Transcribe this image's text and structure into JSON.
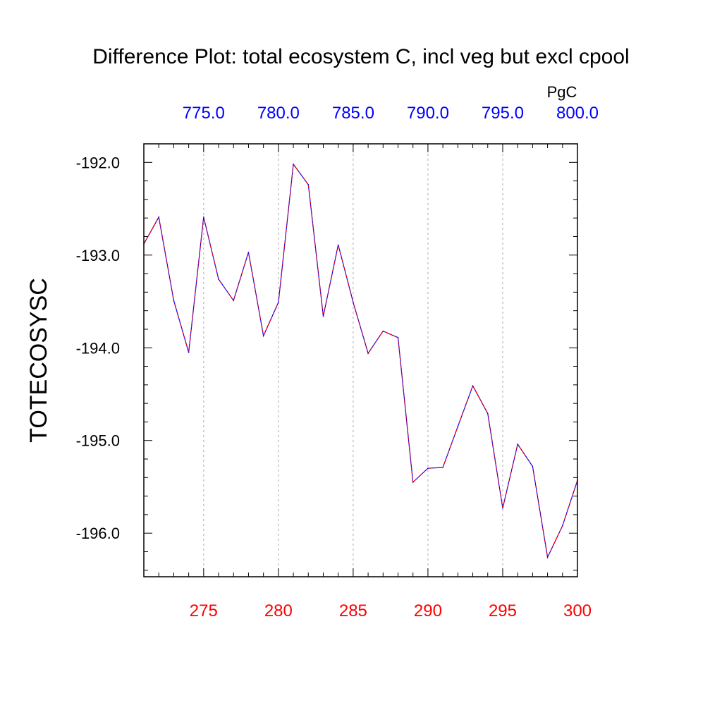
{
  "chart_data": {
    "type": "line",
    "title": "Difference Plot: total ecosystem C, incl veg but excl cpool",
    "ylabel": "TOTECOSYSC",
    "top_axis_unit": "PgC",
    "xlim": [
      271,
      300
    ],
    "ylim": [
      -196.47,
      -191.8
    ],
    "bottom_ticks": [
      275,
      280,
      285,
      290,
      295,
      300
    ],
    "bottom_tick_labels": [
      "275",
      "280",
      "285",
      "290",
      "295",
      "300"
    ],
    "top_ticks": [
      775,
      780,
      785,
      790,
      795,
      800
    ],
    "top_tick_labels": [
      "775.0",
      "780.0",
      "785.0",
      "790.0",
      "795.0",
      "800.0"
    ],
    "top_offset": 500,
    "left_ticks": [
      -192.0,
      -193.0,
      -194.0,
      -195.0,
      -196.0
    ],
    "left_tick_labels": [
      "-192.0",
      "-193.0",
      "-194.0",
      "-195.0",
      "-196.0"
    ],
    "left_minor_step": 0.2,
    "grid_x": true,
    "series": [
      {
        "name": "difference",
        "color_primary": "#0000ff",
        "color_dash": "#ff0000",
        "x": [
          271,
          272,
          273,
          274,
          275,
          276,
          277,
          278,
          279,
          280,
          281,
          282,
          283,
          284,
          285,
          286,
          287,
          288,
          289,
          290,
          291,
          292,
          293,
          294,
          295,
          296,
          297,
          298,
          299,
          300
        ],
        "y": [
          -192.88,
          -192.59,
          -193.49,
          -194.05,
          -192.59,
          -193.26,
          -193.49,
          -192.97,
          -193.87,
          -193.51,
          -192.02,
          -192.24,
          -193.66,
          -192.89,
          -193.51,
          -194.06,
          -193.82,
          -193.89,
          -195.45,
          -195.3,
          -195.29,
          -194.85,
          -194.41,
          -194.71,
          -195.73,
          -195.04,
          -195.28,
          -196.26,
          -195.92,
          -195.43
        ]
      }
    ]
  }
}
